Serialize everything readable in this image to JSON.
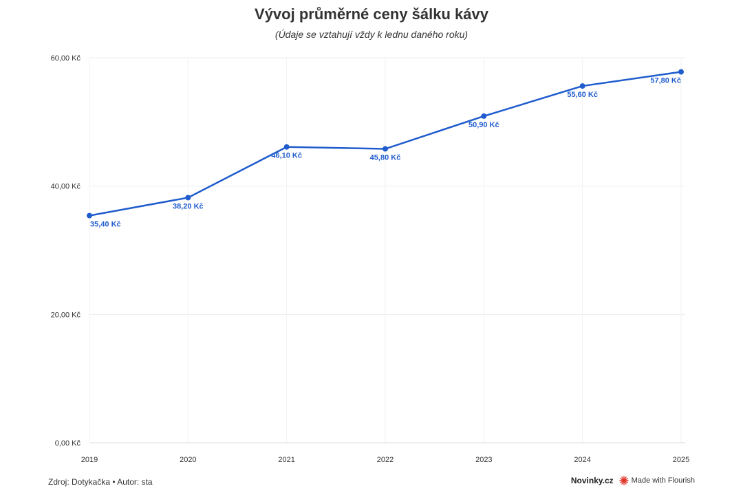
{
  "chart_data": {
    "type": "line",
    "title": "Vývoj průměrné ceny šálku kávy",
    "subtitle": "(Údaje se vztahují vždy k lednu daného roku)",
    "categories": [
      "2019",
      "2020",
      "2021",
      "2022",
      "2023",
      "2024",
      "2025"
    ],
    "series": [
      {
        "values": [
          35.4,
          38.2,
          46.1,
          45.8,
          50.9,
          55.6,
          57.8
        ],
        "labels": [
          "35,40 Kč",
          "38,20 Kč",
          "46,10 Kč",
          "45,80 Kč",
          "50,90 Kč",
          "55,60 Kč",
          "57,80 Kč"
        ]
      }
    ],
    "ylim": [
      0,
      60
    ],
    "yticks": [
      0,
      20,
      40,
      60
    ],
    "ytick_labels": [
      "0,00 Kč",
      "20,00 Kč",
      "40,00 Kč",
      "60,00 Kč"
    ],
    "grid": true,
    "line_color": "#1f5ccd"
  },
  "footer": {
    "source": "Zdroj: Dotykačka • Autor: sta",
    "brand": "Novinky.cz",
    "flourish": "Made with Flourish",
    "flourish_color": "#e0352b"
  }
}
